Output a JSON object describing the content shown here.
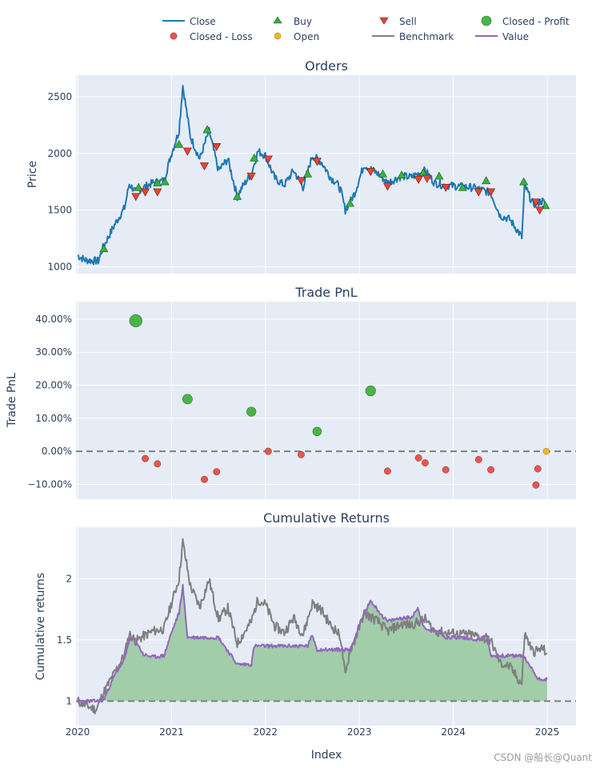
{
  "chart_data": [
    {
      "panel": "orders",
      "type": "line",
      "title": "Orders",
      "ylabel": "Price",
      "ylim": [
        940,
        2690
      ],
      "yticks": [
        "1000",
        "1500",
        "2000",
        "2500"
      ],
      "close_keypoints": {
        "x": [
          2020.0,
          2020.08,
          2020.22,
          2020.27,
          2020.4,
          2020.5,
          2020.55,
          2020.62,
          2020.7,
          2020.8,
          2020.92,
          2021.0,
          2021.08,
          2021.12,
          2021.2,
          2021.3,
          2021.4,
          2021.5,
          2021.6,
          2021.7,
          2021.75,
          2021.85,
          2021.92,
          2022.0,
          2022.1,
          2022.2,
          2022.3,
          2022.4,
          2022.5,
          2022.6,
          2022.7,
          2022.75,
          2022.8,
          2022.85,
          2022.9,
          2022.95,
          2023.05,
          2023.2,
          2023.3,
          2023.45,
          2023.55,
          2023.7,
          2023.8,
          2023.9,
          2024.05,
          2024.2,
          2024.3,
          2024.4,
          2024.5,
          2024.6,
          2024.7,
          2024.73,
          2024.76,
          2024.85,
          2024.95,
          2025.0
        ],
        "y": [
          1100,
          1060,
          1050,
          1170,
          1380,
          1520,
          1730,
          1660,
          1700,
          1740,
          1760,
          2000,
          2200,
          2600,
          2150,
          1950,
          2200,
          1850,
          1950,
          1620,
          1700,
          1820,
          2020,
          1980,
          1780,
          1720,
          1850,
          1700,
          1980,
          1920,
          1780,
          1750,
          1680,
          1500,
          1570,
          1650,
          1900,
          1820,
          1740,
          1800,
          1790,
          1850,
          1740,
          1720,
          1710,
          1700,
          1680,
          1650,
          1450,
          1420,
          1300,
          1260,
          1720,
          1550,
          1580,
          1530
        ]
      },
      "buys": {
        "x": [
          2020.28,
          2020.65,
          2020.85,
          2020.93,
          2021.08,
          2021.38,
          2021.7,
          2021.88,
          2022.45,
          2022.9,
          2023.25,
          2023.45,
          2023.68,
          2023.85,
          2024.1,
          2024.35,
          2024.75,
          2024.98
        ],
        "y": [
          1160,
          1700,
          1740,
          1750,
          2080,
          2210,
          1620,
          1960,
          1820,
          1560,
          1820,
          1810,
          1830,
          1800,
          1700,
          1760,
          1750,
          1540
        ]
      },
      "sells": {
        "x": [
          2020.62,
          2020.72,
          2020.85,
          2021.17,
          2021.35,
          2021.48,
          2021.85,
          2022.03,
          2022.38,
          2022.55,
          2023.12,
          2023.3,
          2023.63,
          2023.72,
          2023.92,
          2024.27,
          2024.4,
          2024.88,
          2024.92
        ],
        "y": [
          1620,
          1660,
          1660,
          2020,
          1890,
          2060,
          1800,
          1950,
          1760,
          1930,
          1840,
          1710,
          1770,
          1780,
          1700,
          1660,
          1660,
          1570,
          1500
        ]
      }
    },
    {
      "panel": "trade_pnl",
      "type": "scatter",
      "title": "Trade PnL",
      "ylabel": "Trade PnL",
      "ylim": [
        -14.5,
        45.3
      ],
      "yticks": [
        "−10.00%",
        "0.00%",
        "10.00%",
        "20.00%",
        "30.00%",
        "40.00%"
      ],
      "closed_profit": {
        "x": [
          2020.62,
          2021.17,
          2021.85,
          2022.55,
          2023.12
        ],
        "y": [
          39.5,
          15.8,
          12.0,
          6.0,
          18.3
        ]
      },
      "closed_loss": {
        "x": [
          2020.72,
          2020.85,
          2021.35,
          2021.48,
          2022.03,
          2022.38,
          2023.3,
          2023.63,
          2023.7,
          2023.92,
          2024.27,
          2024.4,
          2024.88,
          2024.9
        ],
        "y": [
          -2.2,
          -3.8,
          -8.5,
          -6.2,
          0.0,
          -1.0,
          -6.0,
          -2.0,
          -3.5,
          -5.6,
          -2.5,
          -5.6,
          -10.2,
          -5.3
        ]
      },
      "open": {
        "x": [
          2024.99
        ],
        "y": [
          0.0
        ]
      }
    },
    {
      "panel": "cumulative_returns",
      "type": "area",
      "title": "Cumulative Returns",
      "ylabel": "Cumulative returns",
      "xlabel": "Index",
      "ylim": [
        0.8,
        2.42
      ],
      "yticks": [
        "1",
        "1.5",
        "2"
      ],
      "xticks": [
        "2020",
        "2021",
        "2022",
        "2023",
        "2024",
        "2025"
      ],
      "benchmark": {
        "x": [
          2020.0,
          2020.1,
          2020.2,
          2020.27,
          2020.4,
          2020.5,
          2020.55,
          2020.62,
          2020.7,
          2020.8,
          2020.92,
          2021.0,
          2021.08,
          2021.12,
          2021.2,
          2021.3,
          2021.4,
          2021.5,
          2021.6,
          2021.7,
          2021.75,
          2021.85,
          2021.92,
          2022.0,
          2022.1,
          2022.2,
          2022.3,
          2022.4,
          2022.5,
          2022.6,
          2022.7,
          2022.75,
          2022.8,
          2022.85,
          2022.9,
          2022.95,
          2023.05,
          2023.2,
          2023.3,
          2023.45,
          2023.55,
          2023.7,
          2023.8,
          2023.9,
          2024.05,
          2024.2,
          2024.3,
          2024.4,
          2024.5,
          2024.6,
          2024.7,
          2024.73,
          2024.76,
          2024.85,
          2024.95,
          2025.0
        ],
        "y": [
          1.0,
          0.96,
          0.93,
          1.06,
          1.24,
          1.38,
          1.55,
          1.49,
          1.53,
          1.57,
          1.59,
          1.8,
          2.0,
          2.3,
          1.94,
          1.77,
          1.99,
          1.67,
          1.76,
          1.47,
          1.53,
          1.65,
          1.83,
          1.79,
          1.61,
          1.56,
          1.68,
          1.54,
          1.8,
          1.74,
          1.61,
          1.58,
          1.52,
          1.2,
          1.42,
          1.49,
          1.72,
          1.65,
          1.57,
          1.63,
          1.62,
          1.67,
          1.57,
          1.56,
          1.55,
          1.54,
          1.52,
          1.49,
          1.31,
          1.28,
          1.17,
          1.14,
          1.55,
          1.4,
          1.43,
          1.39
        ]
      },
      "value": {
        "x": [
          2020.0,
          2020.27,
          2020.4,
          2020.5,
          2020.55,
          2020.62,
          2020.65,
          2020.7,
          2020.8,
          2020.92,
          2021.0,
          2021.08,
          2021.12,
          2021.17,
          2021.5,
          2021.7,
          2021.85,
          2021.88,
          2022.0,
          2022.45,
          2022.5,
          2022.55,
          2022.9,
          2023.05,
          2023.12,
          2023.25,
          2023.3,
          2023.45,
          2023.55,
          2023.62,
          2023.7,
          2023.85,
          2023.92,
          2024.1,
          2024.27,
          2024.35,
          2024.4,
          2024.75,
          2024.8,
          2024.85,
          2024.9,
          2025.0
        ],
        "y": [
          1.0,
          1.0,
          1.22,
          1.34,
          1.5,
          1.5,
          1.45,
          1.38,
          1.36,
          1.37,
          1.56,
          1.72,
          1.94,
          1.52,
          1.52,
          1.3,
          1.3,
          1.45,
          1.45,
          1.45,
          1.54,
          1.42,
          1.42,
          1.71,
          1.82,
          1.69,
          1.65,
          1.68,
          1.68,
          1.76,
          1.58,
          1.58,
          1.52,
          1.52,
          1.5,
          1.54,
          1.37,
          1.37,
          1.3,
          1.25,
          1.18,
          1.18
        ]
      }
    }
  ],
  "legend": {
    "close": "Close",
    "buy": "Buy",
    "sell": "Sell",
    "closed_profit": "Closed - Profit",
    "closed_loss": "Closed - Loss",
    "open": "Open",
    "benchmark": "Benchmark",
    "value": "Value"
  },
  "colors": {
    "close": "#1f77b4",
    "buy": "#37b13f",
    "sell": "#ea4335",
    "profit": "#4ab546",
    "loss": "#e5564f",
    "open": "#f1b82e",
    "benchmark": "#7f7f7f",
    "value": "#9467bd",
    "fill": "#a1cda9",
    "plot_bg": "#e5ecf6"
  },
  "watermark": "CSDN @船长@Quant"
}
